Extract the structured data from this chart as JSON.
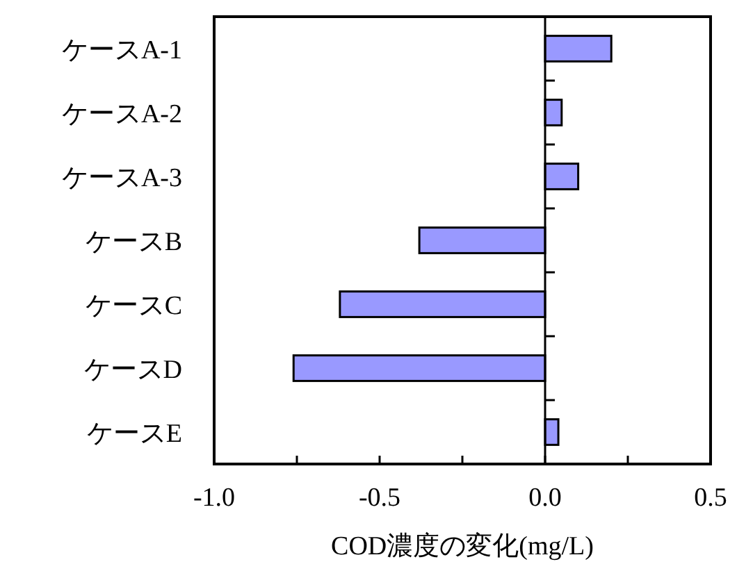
{
  "chart_data": {
    "type": "bar",
    "orientation": "horizontal",
    "xlabel": "COD濃度の変化(mg/L)",
    "categories": [
      "ケースA-1",
      "ケースA-2",
      "ケースA-3",
      "ケースB",
      "ケースC",
      "ケースD",
      "ケースE"
    ],
    "values": [
      0.2,
      0.05,
      0.1,
      -0.38,
      -0.62,
      -0.76,
      0.04
    ],
    "color": "#9999ff",
    "xlim": [
      -1.0,
      0.5
    ],
    "xticks": [
      {
        "value": -1.0,
        "label": "-1.0"
      },
      {
        "value": -0.75,
        "label": null
      },
      {
        "value": -0.5,
        "label": "-0.5"
      },
      {
        "value": -0.25,
        "label": null
      },
      {
        "value": 0.0,
        "label": "0.0"
      },
      {
        "value": 0.25,
        "label": null
      },
      {
        "value": 0.5,
        "label": "0.5"
      }
    ],
    "ref_lines": [
      {
        "axis": "x",
        "value": 0.0,
        "color": "#000000",
        "line_style": "solid"
      }
    ],
    "grid": false
  }
}
